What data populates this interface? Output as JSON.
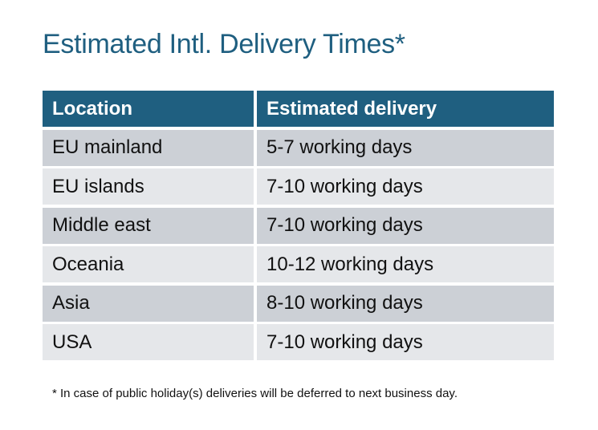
{
  "title": "Estimated Intl. Delivery Times*",
  "table": {
    "headers": [
      "Location",
      "Estimated delivery"
    ],
    "rows": [
      [
        "EU mainland",
        "5-7 working days"
      ],
      [
        "EU islands",
        "7-10 working days"
      ],
      [
        "Middle east",
        "7-10 working days"
      ],
      [
        "Oceania",
        "10-12 working days"
      ],
      [
        "Asia",
        "8-10 working days"
      ],
      [
        "USA",
        "7-10 working days"
      ]
    ]
  },
  "footnote": "* In case of public holiday(s) deliveries will be deferred to next business day.",
  "colors": {
    "header_bg": "#1f5f80",
    "row_odd": "#ccd0d6",
    "row_even": "#e5e7ea",
    "title": "#1f5f80"
  }
}
